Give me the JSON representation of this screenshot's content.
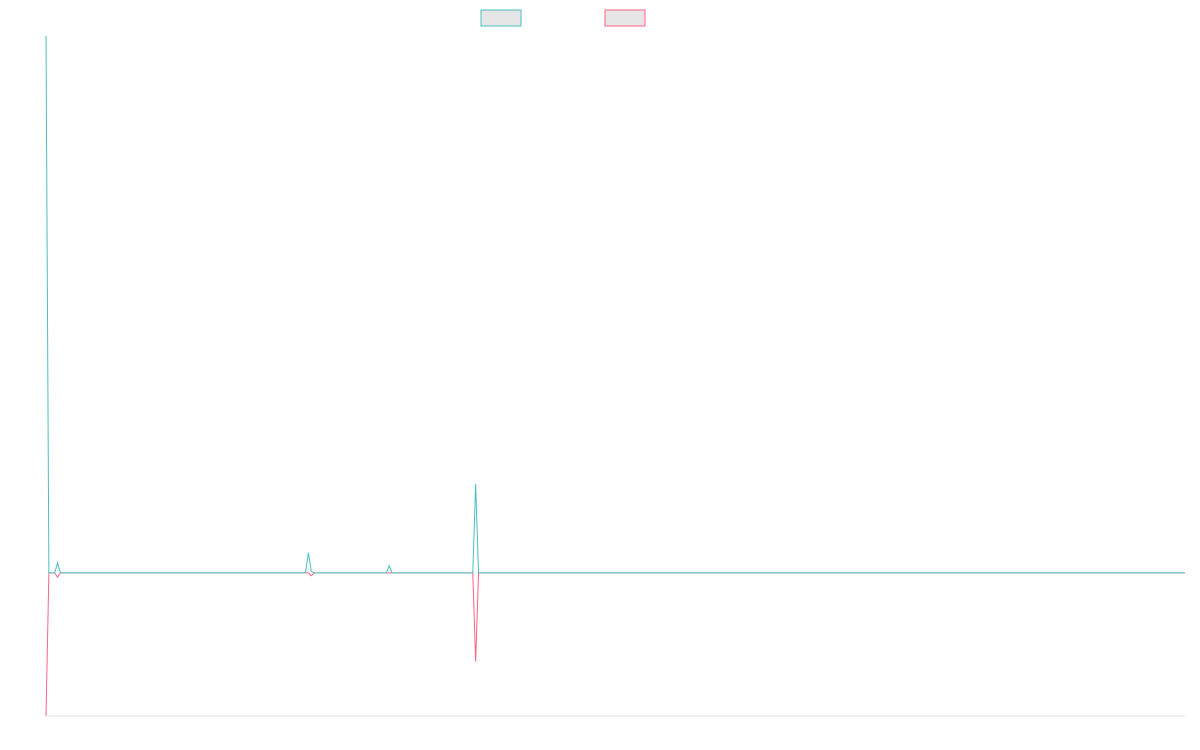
{
  "chart_data": {
    "type": "line",
    "title": "",
    "xlabel": "",
    "ylabel": "",
    "grid": false,
    "legend": "top-center",
    "x_count": 396,
    "ylim": [
      -100,
      375
    ],
    "series": [
      {
        "color": "#4bc0c0",
        "sparse_values": [
          [
            0,
            375
          ],
          [
            1,
            0
          ],
          [
            4,
            7
          ],
          [
            91,
            14
          ],
          [
            92,
            1
          ],
          [
            119,
            5
          ],
          [
            149,
            62
          ]
        ],
        "default": 0
      },
      {
        "color": "#ff6384",
        "sparse_values": [
          [
            0,
            -100
          ],
          [
            1,
            0
          ],
          [
            4,
            -3
          ],
          [
            91,
            0
          ],
          [
            92,
            -2
          ],
          [
            149,
            -62
          ]
        ],
        "default": 0
      }
    ]
  }
}
